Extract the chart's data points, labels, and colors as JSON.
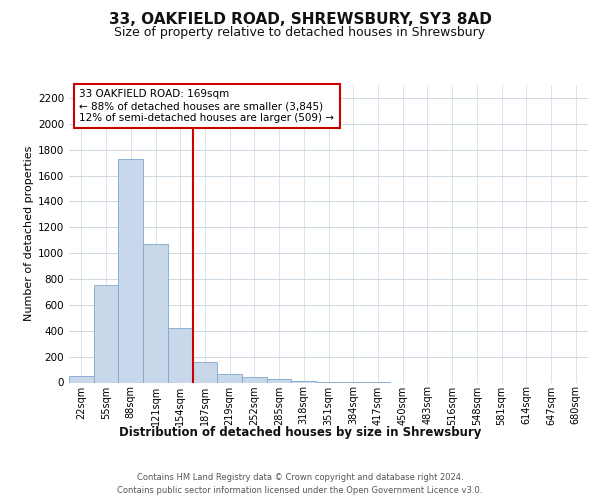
{
  "title": "33, OAKFIELD ROAD, SHREWSBURY, SY3 8AD",
  "subtitle": "Size of property relative to detached houses in Shrewsbury",
  "xlabel": "Distribution of detached houses by size in Shrewsbury",
  "ylabel": "Number of detached properties",
  "footer_line1": "Contains HM Land Registry data © Crown copyright and database right 2024.",
  "footer_line2": "Contains public sector information licensed under the Open Government Licence v3.0.",
  "annotation_line1": "33 OAKFIELD ROAD: 169sqm",
  "annotation_line2": "← 88% of detached houses are smaller (3,845)",
  "annotation_line3": "12% of semi-detached houses are larger (509) →",
  "bar_color": "#c8d8ea",
  "bar_edge_color": "#7ea8cb",
  "highlight_line_color": "#cc0000",
  "background_color": "#ffffff",
  "grid_color": "#ccd8e2",
  "categories": [
    "22sqm",
    "55sqm",
    "88sqm",
    "121sqm",
    "154sqm",
    "187sqm",
    "219sqm",
    "252sqm",
    "285sqm",
    "318sqm",
    "351sqm",
    "384sqm",
    "417sqm",
    "450sqm",
    "483sqm",
    "516sqm",
    "548sqm",
    "581sqm",
    "614sqm",
    "647sqm",
    "680sqm"
  ],
  "values": [
    50,
    750,
    1730,
    1070,
    420,
    160,
    65,
    40,
    25,
    15,
    5,
    2,
    1,
    0,
    0,
    0,
    0,
    0,
    0,
    0,
    0
  ],
  "vline_index": 5,
  "ylim": [
    0,
    2300
  ],
  "yticks": [
    0,
    200,
    400,
    600,
    800,
    1000,
    1200,
    1400,
    1600,
    1800,
    2000,
    2200
  ],
  "title_fontsize": 11,
  "subtitle_fontsize": 9,
  "ylabel_fontsize": 8,
  "xlabel_fontsize": 8.5,
  "tick_fontsize": 7,
  "footer_fontsize": 6,
  "ann_fontsize": 7.5
}
